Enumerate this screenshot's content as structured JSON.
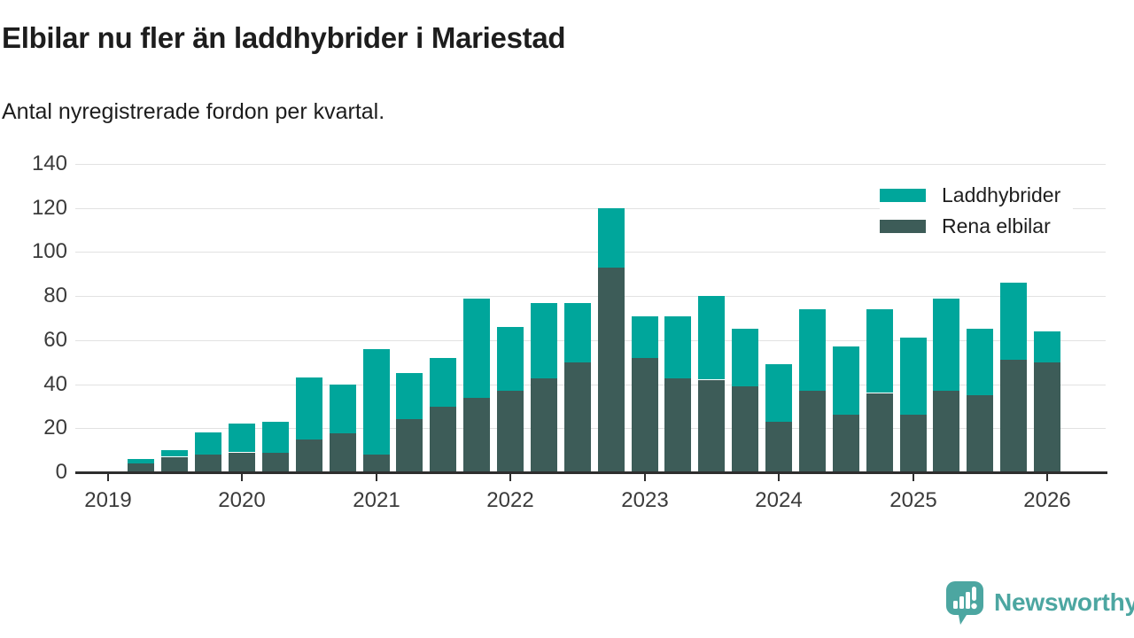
{
  "header": {
    "title": "Elbilar nu fler än laddhybrider i Mariestad",
    "subtitle": "Antal nyregistrerade fordon per kvartal."
  },
  "chart_data": {
    "type": "bar",
    "stacked": true,
    "title": "Elbilar nu fler än laddhybrider i Mariestad",
    "subtitle": "Antal nyregistrerade fordon per kvartal.",
    "categories": [
      "2019 Q2",
      "2019 Q3",
      "2019 Q4",
      "2020 Q1",
      "2020 Q2",
      "2020 Q3",
      "2020 Q4",
      "2021 Q1",
      "2021 Q2",
      "2021 Q3",
      "2021 Q4",
      "2022 Q1",
      "2022 Q2",
      "2022 Q3",
      "2022 Q4",
      "2023 Q1",
      "2023 Q2",
      "2023 Q3",
      "2023 Q4",
      "2024 Q1",
      "2024 Q2",
      "2024 Q3",
      "2024 Q4",
      "2025 Q1",
      "2025 Q2",
      "2025 Q3",
      "2025 Q4",
      "2026 Q1"
    ],
    "series": [
      {
        "name": "Laddhybrider",
        "color": "#00a69b",
        "values": [
          2,
          3,
          10,
          13,
          14,
          28,
          22,
          48,
          21,
          22,
          45,
          29,
          34,
          27,
          27,
          19,
          28,
          38,
          26,
          26,
          37,
          31,
          38,
          35,
          42,
          30,
          35,
          14
        ]
      },
      {
        "name": "Rena elbilar",
        "color": "#3d5c58",
        "values": [
          4,
          7,
          8,
          9,
          9,
          15,
          18,
          8,
          24,
          30,
          34,
          37,
          43,
          50,
          93,
          52,
          43,
          42,
          39,
          23,
          37,
          26,
          36,
          26,
          37,
          35,
          51,
          50
        ]
      }
    ],
    "stack_order_bottom_to_top": [
      "Rena elbilar",
      "Laddhybrider"
    ],
    "ylim": [
      0,
      140
    ],
    "yticks": [
      0,
      20,
      40,
      60,
      80,
      100,
      120,
      140
    ],
    "xticks": [
      "2019",
      "2020",
      "2021",
      "2022",
      "2023",
      "2024",
      "2025",
      "2026"
    ],
    "xlabel": "",
    "ylabel": "",
    "grid": "horizontal",
    "legend_position": "top-right"
  },
  "footer": {
    "brand": "Newsworthy",
    "brand_color": "#4ca6a1"
  },
  "colors": {
    "background": "#ffffff",
    "axis": "#2e2e2e",
    "gridline": "#e2e2e2",
    "text": "#1d1d1d",
    "tick_text": "#3b3b3b"
  }
}
